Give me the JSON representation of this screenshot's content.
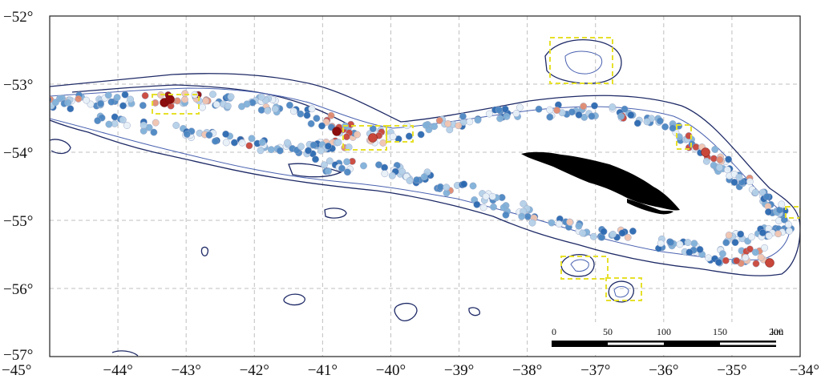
{
  "map": {
    "extent": {
      "lon": [
        -45,
        -34
      ],
      "lat": [
        -57,
        -52
      ]
    },
    "x_ticks": [
      "−45°",
      "−44°",
      "−43°",
      "−42°",
      "−41°",
      "−40°",
      "−39°",
      "−38°",
      "−37°",
      "−36°",
      "−35°",
      "−34°"
    ],
    "y_ticks": [
      "−52°",
      "−53°",
      "−54°",
      "−55°",
      "−56°",
      "−57°"
    ],
    "grid": true,
    "land_feature": "south-georgia-island",
    "colors": {
      "outer_contour": "#1e2a66",
      "inner_contour": "#4a62b0",
      "highlight_box": "#e6e02a",
      "land": "#000000",
      "grid": "#bfbfbf",
      "point_scale": [
        "#2a68b0",
        "#4b86c2",
        "#7fb0d8",
        "#b3d0e8",
        "#e8f0f8",
        "#f0c4b0",
        "#e08a70",
        "#c8463a",
        "#8b0d0d"
      ]
    },
    "scale_bar": {
      "ticks": [
        "0",
        "50",
        "100",
        "150",
        "200"
      ],
      "unit": "km"
    }
  }
}
